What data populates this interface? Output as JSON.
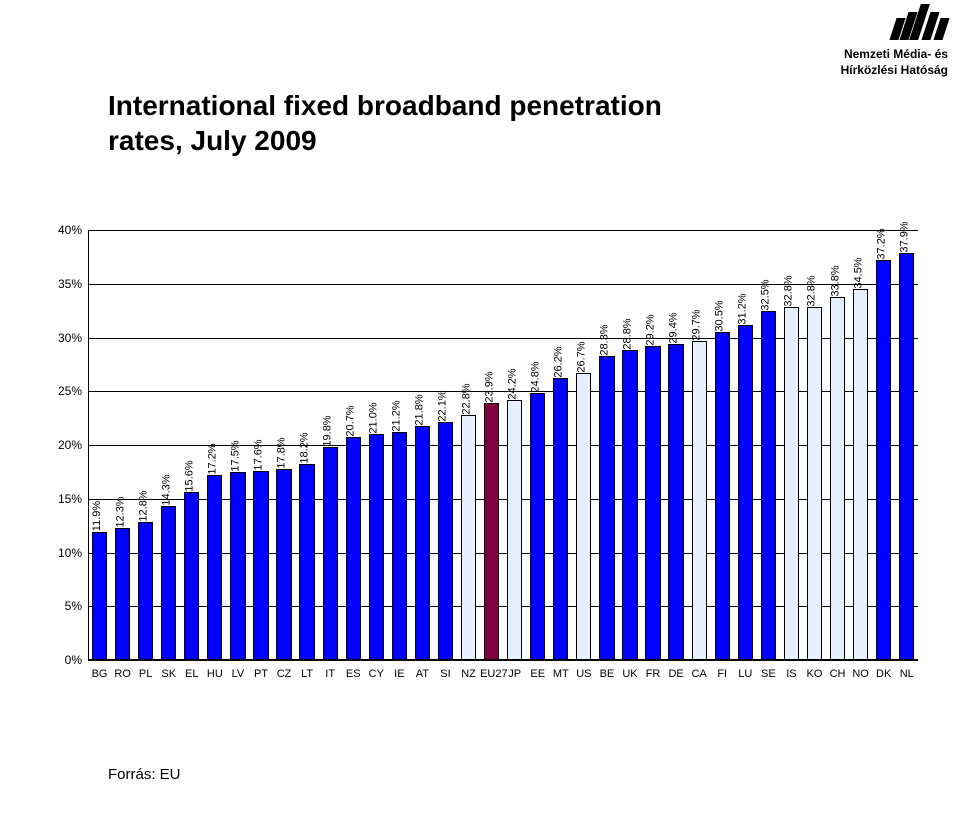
{
  "logo": {
    "line1": "Nemzeti Média- és",
    "line2": "Hírközlési Hatóság"
  },
  "title": {
    "line1": "International fixed broadband penetration",
    "line2": "rates, July 2009"
  },
  "source": "Forrás: EU",
  "chart": {
    "type": "bar",
    "y_min": 0,
    "y_max": 40,
    "y_ticks": [
      0,
      5,
      10,
      15,
      20,
      25,
      30,
      35,
      40
    ],
    "y_tick_labels": [
      "0%",
      "5%",
      "10%",
      "15%",
      "20%",
      "25%",
      "30%",
      "35%",
      "40%"
    ],
    "background_color": "#ffffff",
    "grid_color": "#000000",
    "axis_color": "#000000",
    "label_fontsize": 11,
    "value_label_rotation": -90,
    "default_fill": "#0000ff",
    "default_value_color": "#000000",
    "categories": [
      "BG",
      "RO",
      "PL",
      "SK",
      "EL",
      "HU",
      "LV",
      "PT",
      "CZ",
      "LT",
      "IT",
      "ES",
      "CY",
      "IE",
      "AT",
      "SI",
      "NZ",
      "EU27",
      "JP",
      "EE",
      "MT",
      "US",
      "BE",
      "UK",
      "FR",
      "DE",
      "CA",
      "FI",
      "LU",
      "SE",
      "IS",
      "KO",
      "CH",
      "NO",
      "DK",
      "NL"
    ],
    "values": [
      11.9,
      12.3,
      12.8,
      14.3,
      15.6,
      17.2,
      17.5,
      17.6,
      17.8,
      18.2,
      19.8,
      20.7,
      21.0,
      21.2,
      21.8,
      22.1,
      22.8,
      23.9,
      24.2,
      24.8,
      26.2,
      26.7,
      28.3,
      28.8,
      29.2,
      29.4,
      29.7,
      30.5,
      31.2,
      32.5,
      32.8,
      32.8,
      33.8,
      34.5,
      37.2,
      37.9
    ],
    "value_labels": [
      "11.9%",
      "12.3%",
      "12.8%",
      "14.3%",
      "15.6%",
      "17.2%",
      "17.5%",
      "17.6%",
      "17.8%",
      "18.2%",
      "19.8%",
      "20.7%",
      "21.0%",
      "21.2%",
      "21.8%",
      "22.1%",
      "22.8%",
      "23.9%",
      "24.2%",
      "24.8%",
      "26.2%",
      "26.7%",
      "28.3%",
      "28.8%",
      "29.2%",
      "29.4%",
      "29.7%",
      "30.5%",
      "31.2%",
      "32.5%",
      "32.8%",
      "32.8%",
      "33.8%",
      "34.5%",
      "37.2%",
      "37.9%"
    ],
    "bar_colors": {
      "NZ": "#e6f0ff",
      "EU27": "#800040",
      "JP": "#e6f0ff",
      "US": "#e6f0ff",
      "CA": "#e6f0ff",
      "IS": "#e6f0ff",
      "KO": "#e6f0ff",
      "CH": "#e6f0ff",
      "NO": "#e6f0ff"
    }
  }
}
